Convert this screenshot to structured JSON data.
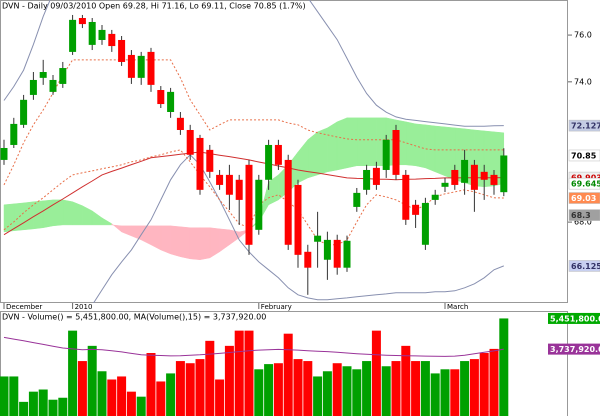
{
  "chart_data": {
    "type": "candlestick",
    "header": "DVN - Daily 09/03/2010 Open 69.28, Hi 71.16, Lo 69.11, Close 70.85 (1.7%)",
    "categories": [
      "December",
      null,
      null,
      null,
      null,
      null,
      null,
      "2010",
      null,
      null,
      null,
      null,
      null,
      null,
      null,
      null,
      null,
      null,
      null,
      null,
      null,
      null,
      null,
      null,
      null,
      null,
      "February",
      null,
      null,
      null,
      null,
      null,
      null,
      null,
      null,
      null,
      null,
      null,
      null,
      null,
      null,
      null,
      null,
      null,
      null,
      "March",
      null,
      null,
      null,
      null,
      null,
      null
    ],
    "open": [
      70.66,
      71.3,
      72.16,
      73.44,
      74.17,
      73.57,
      73.91,
      75.28,
      76.73,
      75.58,
      75.79,
      76.05,
      75.79,
      75.15,
      74.17,
      75.28,
      73.65,
      72.71,
      72.46,
      71.94,
      71.6,
      71.09,
      70.02,
      70.02,
      69.81,
      70.45,
      67.67,
      69.81,
      71.3,
      70.66,
      69.59,
      66.73,
      67.16,
      66.39,
      67.24,
      66.05,
      68.65,
      69.38,
      70.32,
      70.23,
      71.94,
      70.02,
      68.74,
      67.03,
      68.95,
      69.51,
      70.23,
      69.68,
      70.45,
      70.15,
      70.02,
      69.28
    ],
    "high": [
      71.52,
      72.46,
      73.44,
      74.42,
      74.94,
      74.29,
      74.85,
      76.86,
      76.86,
      76.73,
      76.43,
      76.22,
      75.96,
      75.36,
      75.28,
      75.45,
      73.82,
      73.74,
      72.71,
      72.16,
      71.73,
      71.3,
      70.23,
      70.45,
      70.02,
      70.66,
      70.02,
      71.52,
      71.52,
      70.88,
      69.81,
      67.03,
      68.44,
      67.59,
      67.46,
      67.42,
      69.46,
      70.45,
      70.58,
      71.73,
      72.16,
      70.23,
      68.95,
      69.04,
      69.38,
      69.89,
      70.45,
      71.09,
      70.66,
      70.45,
      70.23,
      71.16
    ],
    "low": [
      70.45,
      71.17,
      72.03,
      73.23,
      73.87,
      73.44,
      73.74,
      75.15,
      76.3,
      75.36,
      75.58,
      75.28,
      74.68,
      73.91,
      73.87,
      73.57,
      72.88,
      72.46,
      71.73,
      70.66,
      69.17,
      69.89,
      69.38,
      68.52,
      67.88,
      66.6,
      67.46,
      69.38,
      70.23,
      66.81,
      66.05,
      64.89,
      66.05,
      65.53,
      65.75,
      65.87,
      68.44,
      69.17,
      69.38,
      69.89,
      69.81,
      67.88,
      67.75,
      66.81,
      68.74,
      69.29,
      69.38,
      69.17,
      68.44,
      68.95,
      69.17,
      69.11
    ],
    "close": [
      71.17,
      72.2,
      73.23,
      74.08,
      74.42,
      74.08,
      74.59,
      76.65,
      76.47,
      76.56,
      76.22,
      75.53,
      74.85,
      74.17,
      75.11,
      73.87,
      73.05,
      73.57,
      71.94,
      70.88,
      69.38,
      70.15,
      69.59,
      69.17,
      68.95,
      67.03,
      69.81,
      71.3,
      70.45,
      67.03,
      66.6,
      66.05,
      67.42,
      67.24,
      66.05,
      67.2,
      69.25,
      70.23,
      69.59,
      71.52,
      70.02,
      68.1,
      68.31,
      68.82,
      69.17,
      69.68,
      69.59,
      70.66,
      69.38,
      69.81,
      69.59,
      70.85
    ],
    "up_color": "#00a000",
    "down_color": "#ff0000",
    "wick_color": "#333333",
    "ylim": [
      64.54,
      77.5
    ],
    "yticks": [
      {
        "value": 76,
        "label": "76.0"
      },
      {
        "value": 74,
        "label": "74.0"
      },
      {
        "value": 68,
        "label": "68.0"
      }
    ],
    "cloud": {
      "up_color": "#99ee99",
      "down_color": "#ffb6c1",
      "span_a": [
        68.74,
        68.78,
        68.82,
        68.87,
        68.91,
        68.95,
        68.95,
        68.87,
        68.7,
        68.48,
        68.18,
        67.93,
        67.58,
        67.41,
        67.24,
        67.03,
        66.81,
        66.64,
        66.52,
        66.43,
        66.39,
        66.47,
        66.73,
        67.03,
        67.33,
        67.67,
        68.1,
        69.72,
        70.02,
        70.45,
        71.0,
        71.52,
        71.86,
        72.03,
        72.29,
        72.46,
        72.46,
        72.46,
        72.46,
        72.46,
        72.37,
        72.29,
        72.2,
        72.16,
        72.11,
        72.07,
        72.03,
        71.99,
        71.94,
        71.9,
        71.86,
        71.82
      ],
      "span_b": [
        67.58,
        67.63,
        67.67,
        67.71,
        67.76,
        67.84,
        67.88,
        67.88,
        67.88,
        67.88,
        67.88,
        67.88,
        67.84,
        67.84,
        67.84,
        67.84,
        67.84,
        67.84,
        67.8,
        67.76,
        67.76,
        67.76,
        67.71,
        67.67,
        67.58,
        67.67,
        68.01,
        68.74,
        68.95,
        69.29,
        69.68,
        69.89,
        70.02,
        70.15,
        70.23,
        70.32,
        70.41,
        70.41,
        70.41,
        70.41,
        70.45,
        70.45,
        70.41,
        70.32,
        70.15,
        69.98,
        69.81,
        69.68,
        69.55,
        69.51,
        69.55,
        69.645
      ]
    },
    "overlays": [
      {
        "color": "#8890b0",
        "dash": false,
        "values": [
          73.2,
          73.8,
          74.5,
          75.6,
          76.8,
          77.8,
          78.5,
          79.2,
          79.6,
          79.8,
          80.0,
          80.0,
          79.9,
          79.8,
          79.7,
          79.6,
          79.5,
          79.4,
          79.3,
          79.2,
          79.1,
          79.0,
          78.9,
          78.8,
          78.7,
          78.6,
          78.5,
          78.4,
          78.3,
          78.1,
          77.9,
          77.6,
          77.0,
          76.4,
          75.8,
          75.0,
          74.2,
          73.5,
          73.0,
          72.7,
          72.5,
          72.4,
          72.35,
          72.3,
          72.25,
          72.2,
          72.15,
          72.1,
          72.1,
          72.1,
          72.12,
          72.1274
        ]
      },
      {
        "color": "#8890b0",
        "dash": false,
        "values": [
          61.5,
          61.8,
          62.1,
          62.4,
          62.7,
          63.0,
          63.3,
          63.6,
          64.0,
          64.45,
          65.1,
          65.75,
          66.3,
          66.81,
          67.46,
          68.1,
          68.95,
          69.81,
          70.45,
          70.88,
          70.45,
          69.72,
          68.95,
          68.1,
          67.24,
          66.73,
          66.3,
          65.96,
          65.62,
          65.19,
          64.89,
          64.76,
          64.68,
          64.68,
          64.72,
          64.76,
          64.81,
          64.85,
          64.89,
          64.93,
          64.98,
          64.98,
          64.98,
          64.98,
          65.02,
          65.02,
          65.06,
          65.19,
          65.36,
          65.62,
          65.96,
          66.125
        ]
      },
      {
        "color": "#e8704a",
        "dash": true,
        "values": [
          69.59,
          70.45,
          71.39,
          72.16,
          72.8,
          73.52,
          74.29,
          74.94,
          74.94,
          74.94,
          74.94,
          74.94,
          74.94,
          74.94,
          74.94,
          74.94,
          74.94,
          74.94,
          74.17,
          73.23,
          72.59,
          71.94,
          72.16,
          72.37,
          72.37,
          72.37,
          72.37,
          72.37,
          72.37,
          72.24,
          72.16,
          71.94,
          71.82,
          71.73,
          71.64,
          71.56,
          71.52,
          71.52,
          71.52,
          71.52,
          71.52,
          71.39,
          71.26,
          71.13,
          71.09,
          71.09,
          71.09,
          71.09,
          71.09,
          71.09,
          71.09,
          71.09
        ]
      },
      {
        "color": "#e8704a",
        "dash": true,
        "values": [
          67.67,
          68.01,
          68.4,
          68.74,
          69.04,
          69.38,
          69.72,
          70.02,
          70.11,
          70.19,
          70.28,
          70.36,
          70.45,
          70.58,
          70.66,
          70.79,
          70.88,
          71.0,
          71.09,
          70.58,
          70.02,
          69.51,
          68.95,
          68.44,
          67.93,
          67.76,
          68.74,
          69.04,
          69.17,
          68.87,
          68.52,
          67.88,
          67.24,
          67.03,
          67.03,
          67.24,
          68.01,
          68.74,
          69.17,
          69.08,
          68.95,
          68.74,
          68.52,
          68.74,
          69.08,
          69.21,
          69.29,
          69.38,
          69.29,
          69.17,
          69.04,
          69.03
        ]
      },
      {
        "color": "#d03030",
        "dash": false,
        "values": [
          67.46,
          67.72,
          67.97,
          68.23,
          68.48,
          68.74,
          68.99,
          69.25,
          69.51,
          69.76,
          70.02,
          70.17,
          70.31,
          70.46,
          70.6,
          70.75,
          70.8,
          70.85,
          70.9,
          70.95,
          71.0,
          70.93,
          70.86,
          70.8,
          70.73,
          70.66,
          70.57,
          70.49,
          70.4,
          70.32,
          70.23,
          70.16,
          70.1,
          70.03,
          69.96,
          69.89,
          69.87,
          69.86,
          69.84,
          69.83,
          69.81,
          69.83,
          69.84,
          69.86,
          69.87,
          69.89,
          69.89,
          69.9,
          69.9,
          69.9,
          69.9,
          69.9039
        ]
      }
    ],
    "price_tags": [
      {
        "value": 72.1274,
        "color": "#c4cce4",
        "text_color": "#333366"
      },
      {
        "value": 70.85,
        "color": "#ffffff",
        "text_color": "#000000"
      },
      {
        "value": 69.9039,
        "color": "#f0f0f0",
        "text_color": "#cc0000"
      },
      {
        "value": 69.645,
        "color": "#ffffff",
        "text_color": "#008800"
      },
      {
        "value": 69.03,
        "color": "#ff8a50",
        "text_color": "#ffffff"
      },
      {
        "value": 68.3,
        "color": "#a0a0a0",
        "text_color": "#333333"
      },
      {
        "value": 66.125,
        "label": "66.1250",
        "color": "#c8d0f0",
        "text_color": "#333366"
      }
    ],
    "volume": {
      "header": "DVN - Volume() = 5,451,800.00, MA(Volume(),15) = 3,737,920.00",
      "ylim": [
        0,
        5700000
      ],
      "values": [
        2210000,
        2210000,
        790000,
        1360000,
        1480000,
        910000,
        1020000,
        4770000,
        3070000,
        3920000,
        2500000,
        2040000,
        2210000,
        1360000,
        1080000,
        3520000,
        1930000,
        2380000,
        3070000,
        2950000,
        3180000,
        4200000,
        2040000,
        3920000,
        4770000,
        4770000,
        2610000,
        2900000,
        2950000,
        4600000,
        3180000,
        3070000,
        2210000,
        2500000,
        2950000,
        2780000,
        2610000,
        3070000,
        4770000,
        2780000,
        3070000,
        3920000,
        3070000,
        3070000,
        2380000,
        2610000,
        2610000,
        3070000,
        3180000,
        3520000,
        3750000,
        5451800
      ],
      "ma": {
        "color": "#993399",
        "values": [
          4390000,
          4300000,
          4200000,
          4100000,
          4000000,
          3900000,
          3800000,
          3750000,
          3700000,
          3720000,
          3700000,
          3650000,
          3580000,
          3500000,
          3420000,
          3400000,
          3380000,
          3360000,
          3370000,
          3400000,
          3420000,
          3460000,
          3500000,
          3550000,
          3600000,
          3650000,
          3680000,
          3700000,
          3720000,
          3700000,
          3680000,
          3650000,
          3620000,
          3600000,
          3560000,
          3520000,
          3480000,
          3450000,
          3420000,
          3400000,
          3380000,
          3370000,
          3360000,
          3350000,
          3340000,
          3330000,
          3350000,
          3400000,
          3480000,
          3560000,
          3640000,
          3737920
        ]
      },
      "tags": [
        {
          "value": 5451800,
          "label": "5,451,800.00",
          "color": "#00aa00",
          "text_color": "#ffffff"
        },
        {
          "value": 3737920,
          "label": "3,737,920.00",
          "color": "#993399",
          "text_color": "#ffffff"
        }
      ]
    }
  }
}
